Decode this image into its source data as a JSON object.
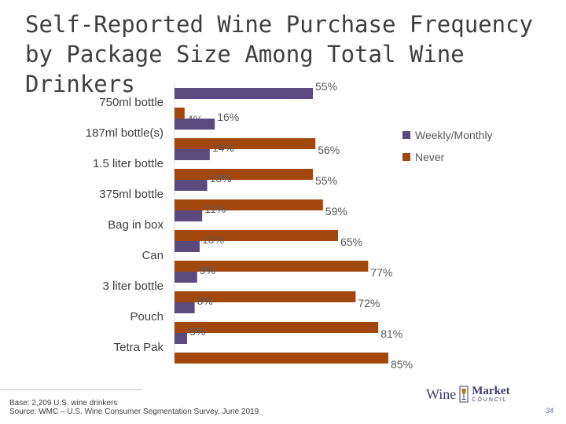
{
  "title": "Self-Reported Wine Purchase Frequency by Package Size Among Total Wine Drinkers",
  "colors": {
    "weekly": "#5b4a7e",
    "never": "#a2480f",
    "text": "#404040"
  },
  "chart_data": {
    "type": "bar",
    "orientation": "horizontal",
    "categories": [
      "750ml bottle",
      "187ml bottle(s)",
      "1.5 liter bottle",
      "375ml bottle",
      "Bag in box",
      "Can",
      "3 liter bottle",
      "Pouch",
      "Tetra Pak"
    ],
    "series": [
      {
        "name": "Weekly/Monthly",
        "values": [
          55,
          16,
          14,
          13,
          11,
          10,
          9,
          8,
          5
        ],
        "labels": [
          "55%",
          "16%",
          "14%",
          "13%",
          "11%",
          "10%",
          "9%",
          "8%",
          "5%"
        ]
      },
      {
        "name": "Never",
        "values": [
          4,
          56,
          55,
          59,
          65,
          77,
          72,
          81,
          85
        ],
        "labels": [
          "4%",
          "56%",
          "55%",
          "59%",
          "65%",
          "77%",
          "72%",
          "81%",
          "85%"
        ]
      }
    ],
    "legend": "right",
    "grid": false,
    "xlim": [
      0,
      100
    ]
  },
  "footer": {
    "base": "Base: 2,209 U.S. wine drinkers",
    "source": "Source: WMC – U.S. Wine Consumer Segmentation Survey, June 2019"
  },
  "logo": {
    "wine": "Wine",
    "market": "Market",
    "council": "COUNCIL"
  },
  "page_number": "34"
}
